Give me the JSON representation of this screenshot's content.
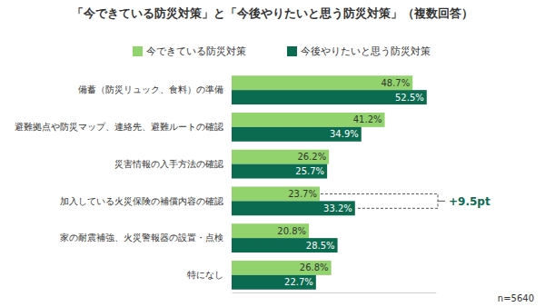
{
  "chart_data": {
    "type": "bar",
    "orientation": "horizontal",
    "title": "「今できている防災対策」と「今後やりたいと思う防災対策」（複数回答）",
    "categories": [
      "備蓄（防災リュック、食料）の準備",
      "避難拠点や防災マップ、連絡先、避難ルートの確認",
      "災害情報の入手方法の確認",
      "加入している火災保険の補償内容の確認",
      "家の耐震補強、火災警報器の設置・点検",
      "特になし"
    ],
    "series": [
      {
        "name": "今できている防災対策",
        "color": "#92d36e",
        "values": [
          48.7,
          41.2,
          26.2,
          23.7,
          20.8,
          26.8
        ],
        "value_labels": [
          "48.7%",
          "41.2%",
          "26.2%",
          "23.7%",
          "20.8%",
          "26.8%"
        ]
      },
      {
        "name": "今後やりたいと思う防災対策",
        "color": "#0b6b50",
        "values": [
          52.5,
          34.9,
          25.7,
          33.2,
          28.5,
          22.7
        ],
        "value_labels": [
          "52.5%",
          "34.9%",
          "25.7%",
          "33.2%",
          "28.5%",
          "22.7%"
        ]
      }
    ],
    "xlim": [
      0,
      55
    ],
    "xticks": [],
    "tick_labels": "y",
    "grid": false,
    "legend": "top",
    "data_labels": true,
    "annotations": [
      {
        "text": "+9.5pt",
        "category": "加入している火災保険の補償内容の確認"
      }
    ],
    "note": "n=5640"
  }
}
